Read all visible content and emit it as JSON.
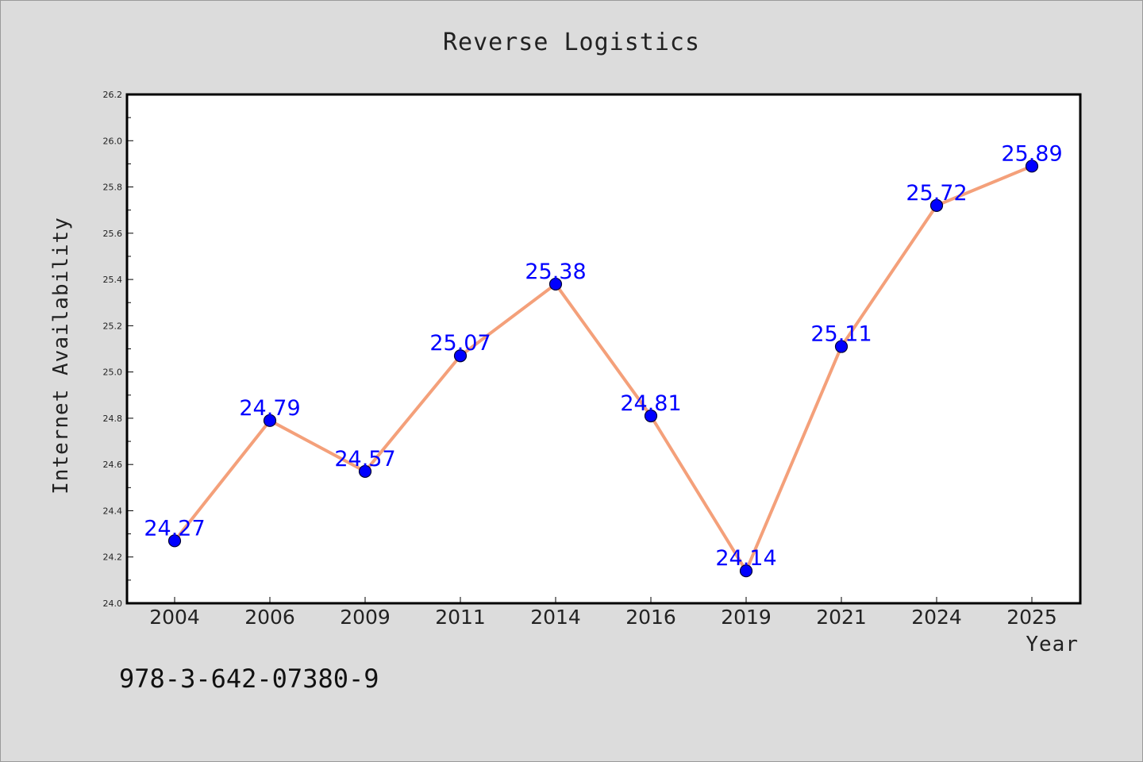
{
  "chart_data": {
    "type": "line",
    "title": "Reverse Logistics",
    "xlabel": "Year",
    "ylabel": "Internet Availability",
    "categories": [
      "2004",
      "2006",
      "2009",
      "2011",
      "2014",
      "2016",
      "2019",
      "2021",
      "2024",
      "2025"
    ],
    "values": [
      24.27,
      24.79,
      24.57,
      25.07,
      25.38,
      24.81,
      24.14,
      25.11,
      25.72,
      25.89
    ],
    "data_labels": [
      "24.27",
      "24.79",
      "24.57",
      "25.07",
      "25.38",
      "24.81",
      "24.14",
      "25.11",
      "25.72",
      "25.89"
    ],
    "ylim": [
      24.0,
      26.2
    ],
    "yticks": [
      "24.0",
      "24.2",
      "24.4",
      "24.6",
      "24.8",
      "25.0",
      "25.2",
      "25.4",
      "25.6",
      "25.8",
      "26.0",
      "26.2"
    ],
    "grid": false,
    "colors": {
      "line": "#f4a07a",
      "marker": "#0000ff",
      "marker_edge": "#000033",
      "data_label": "#0000ff",
      "plot_bg": "#ffffff",
      "page_bg": "#dcdcdc"
    }
  },
  "footer": {
    "isbn": "978-3-642-07380-9"
  }
}
